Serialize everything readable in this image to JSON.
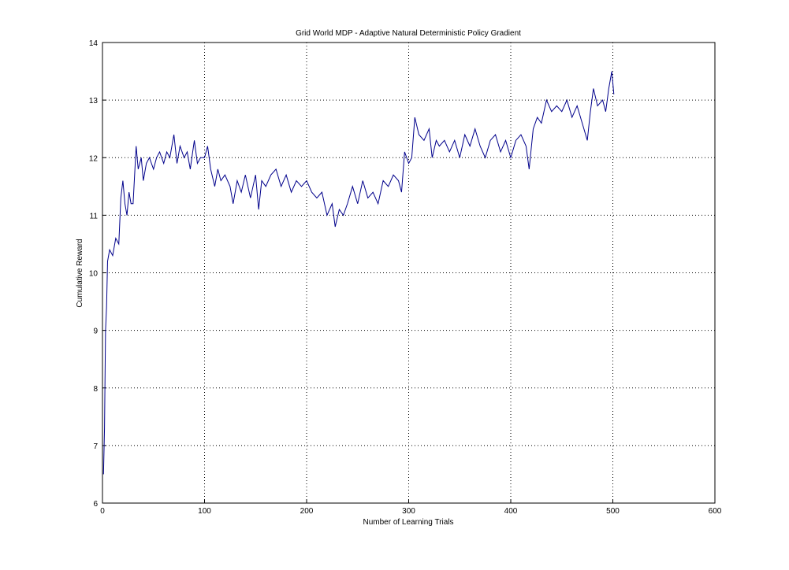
{
  "chart_data": {
    "type": "line",
    "title": "Grid World MDP - Adaptive Natural Deterministic Policy Gradient",
    "x_label": "Number of Learning Trials",
    "y_label": "Cumulative Reward",
    "xlim": [
      0,
      600
    ],
    "xticks": [
      0,
      100,
      200,
      300,
      400,
      500,
      600
    ],
    "ylim": [
      6,
      14
    ],
    "yticks": [
      6,
      7,
      8,
      9,
      10,
      11,
      12,
      13,
      14
    ],
    "grid": true,
    "x": [
      1,
      2,
      3,
      4,
      5,
      7,
      10,
      13,
      16,
      18,
      20,
      22,
      24,
      26,
      28,
      30,
      33,
      35,
      38,
      40,
      43,
      46,
      50,
      53,
      56,
      60,
      63,
      66,
      70,
      73,
      76,
      80,
      83,
      86,
      90,
      93,
      96,
      100,
      103,
      106,
      110,
      113,
      116,
      120,
      125,
      128,
      132,
      136,
      140,
      145,
      150,
      153,
      156,
      160,
      165,
      170,
      175,
      180,
      185,
      190,
      195,
      200,
      205,
      210,
      215,
      220,
      225,
      228,
      232,
      236,
      240,
      245,
      250,
      255,
      260,
      265,
      270,
      275,
      280,
      285,
      290,
      293,
      296,
      300,
      303,
      306,
      310,
      315,
      320,
      323,
      327,
      330,
      335,
      340,
      345,
      350,
      355,
      360,
      365,
      370,
      375,
      380,
      385,
      390,
      395,
      400,
      405,
      410,
      415,
      418,
      422,
      426,
      430,
      435,
      440,
      445,
      450,
      455,
      460,
      465,
      470,
      475,
      478,
      481,
      485,
      490,
      493,
      496,
      499,
      501
    ],
    "series": [
      {
        "color": "#00008b",
        "values": [
          6.5,
          7.3,
          9.0,
          9.4,
          10.2,
          10.4,
          10.3,
          10.6,
          10.5,
          11.3,
          11.6,
          11.2,
          11.0,
          11.4,
          11.2,
          11.2,
          12.2,
          11.8,
          12.0,
          11.6,
          11.9,
          12.0,
          11.8,
          12.0,
          12.1,
          11.9,
          12.1,
          12.0,
          12.4,
          11.9,
          12.2,
          12.0,
          12.1,
          11.8,
          12.3,
          11.9,
          12.0,
          12.0,
          12.2,
          11.8,
          11.5,
          11.8,
          11.6,
          11.7,
          11.5,
          11.2,
          11.6,
          11.4,
          11.7,
          11.3,
          11.7,
          11.1,
          11.6,
          11.5,
          11.7,
          11.8,
          11.5,
          11.7,
          11.4,
          11.6,
          11.5,
          11.6,
          11.4,
          11.3,
          11.4,
          11.0,
          11.2,
          10.8,
          11.1,
          11.0,
          11.2,
          11.5,
          11.2,
          11.6,
          11.3,
          11.4,
          11.2,
          11.6,
          11.5,
          11.7,
          11.6,
          11.4,
          12.1,
          11.9,
          12.0,
          12.7,
          12.4,
          12.3,
          12.5,
          12.0,
          12.3,
          12.2,
          12.3,
          12.1,
          12.3,
          12.0,
          12.4,
          12.2,
          12.5,
          12.2,
          12.0,
          12.3,
          12.4,
          12.1,
          12.3,
          12.0,
          12.3,
          12.4,
          12.2,
          11.8,
          12.5,
          12.7,
          12.6,
          13.0,
          12.8,
          12.9,
          12.8,
          13.0,
          12.7,
          12.9,
          12.6,
          12.3,
          12.8,
          13.2,
          12.9,
          13.0,
          12.8,
          13.2,
          13.5,
          13.1
        ]
      }
    ]
  }
}
